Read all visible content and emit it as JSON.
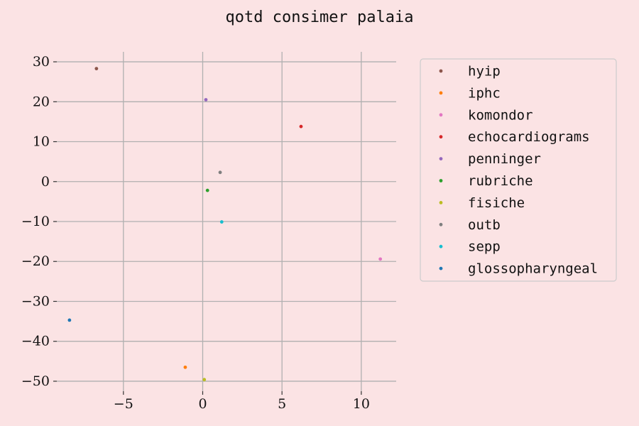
{
  "chart_data": {
    "type": "scatter",
    "title": "qotd consimer palaia",
    "xlabel": "",
    "ylabel": "",
    "xlim": [
      -9.2,
      12.2
    ],
    "ylim": [
      -52.5,
      32.5
    ],
    "x_ticks": [
      -5,
      0,
      5,
      10
    ],
    "x_tick_labels": [
      "−5",
      "0",
      "5",
      "10"
    ],
    "y_ticks": [
      30,
      20,
      10,
      0,
      -10,
      -20,
      -30,
      -40,
      -50
    ],
    "y_tick_labels": [
      "30",
      "20",
      "10",
      "0",
      "−10",
      "−20",
      "−30",
      "−40",
      "−50"
    ],
    "grid": true,
    "legend_position": "right",
    "series": [
      {
        "name": "hyip",
        "color": "#8c564b",
        "points": [
          [
            -6.7,
            28.3
          ]
        ]
      },
      {
        "name": "iphc",
        "color": "#ff7f0e",
        "points": [
          [
            -1.1,
            -46.5
          ]
        ]
      },
      {
        "name": "komondor",
        "color": "#e377c2",
        "points": [
          [
            11.2,
            -19.4
          ]
        ]
      },
      {
        "name": "echocardiograms",
        "color": "#d62728",
        "points": [
          [
            6.2,
            13.8
          ]
        ]
      },
      {
        "name": "penninger",
        "color": "#9467bd",
        "points": [
          [
            0.2,
            20.5
          ]
        ]
      },
      {
        "name": "rubriche",
        "color": "#2ca02c",
        "points": [
          [
            0.3,
            -2.2
          ]
        ]
      },
      {
        "name": "fisiche",
        "color": "#bcbd22",
        "points": [
          [
            0.1,
            -49.6
          ]
        ]
      },
      {
        "name": "outb",
        "color": "#7f7f7f",
        "points": [
          [
            1.1,
            2.3
          ]
        ]
      },
      {
        "name": "sepp",
        "color": "#17becf",
        "points": [
          [
            1.2,
            -10.1
          ]
        ]
      },
      {
        "name": "glossopharyngeal",
        "color": "#1f77b4",
        "points": [
          [
            -8.4,
            -34.7
          ]
        ]
      }
    ]
  }
}
